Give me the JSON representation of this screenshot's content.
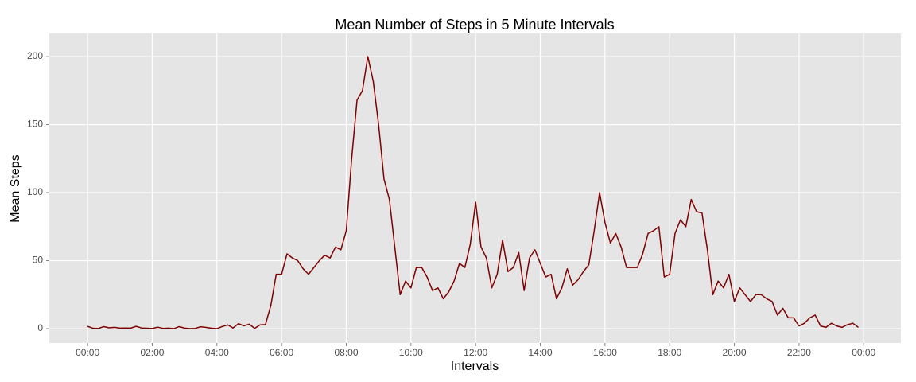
{
  "chart_data": {
    "type": "line",
    "title": "Mean Number of Steps in 5 Minute Intervals",
    "x_label": "Intervals",
    "y_label": "Mean Steps",
    "x": [
      0,
      10,
      20,
      30,
      40,
      50,
      60,
      70,
      80,
      90,
      100,
      110,
      120,
      130,
      140,
      150,
      160,
      170,
      180,
      190,
      200,
      210,
      220,
      230,
      240,
      250,
      260,
      270,
      280,
      290,
      300,
      310,
      320,
      330,
      340,
      350,
      360,
      370,
      380,
      390,
      400,
      410,
      420,
      430,
      440,
      450,
      460,
      470,
      480,
      490,
      500,
      510,
      520,
      530,
      540,
      550,
      560,
      570,
      580,
      590,
      600,
      610,
      620,
      630,
      640,
      650,
      660,
      670,
      680,
      690,
      700,
      710,
      720,
      730,
      740,
      750,
      760,
      770,
      780,
      790,
      800,
      810,
      820,
      830,
      840,
      850,
      860,
      870,
      880,
      890,
      900,
      910,
      920,
      930,
      940,
      950,
      960,
      970,
      980,
      990,
      1000,
      1010,
      1020,
      1030,
      1040,
      1050,
      1060,
      1070,
      1080,
      1090,
      1100,
      1110,
      1120,
      1130,
      1140,
      1150,
      1160,
      1170,
      1180,
      1190,
      1200,
      1210,
      1220,
      1230,
      1240,
      1250,
      1260,
      1270,
      1280,
      1290,
      1300,
      1310,
      1320,
      1330,
      1340,
      1350,
      1360,
      1370,
      1380,
      1390,
      1400,
      1410,
      1420,
      1430
    ],
    "series": [
      {
        "name": "Mean Steps",
        "color": "#7f0000",
        "values": [
          1.7,
          0.3,
          0.1,
          1.5,
          0.6,
          1,
          0.4,
          0.5,
          0.4,
          1.7,
          0.5,
          0.3,
          0.1,
          1.1,
          0.2,
          0.4,
          0,
          1.5,
          0.4,
          0,
          0.2,
          1.4,
          0.9,
          0.3,
          0,
          1.6,
          2.8,
          0.5,
          3.7,
          2.1,
          3.3,
          0.2,
          2.8,
          3,
          17,
          40,
          40,
          55,
          52,
          50,
          44,
          40,
          45,
          50,
          54,
          52,
          60,
          58,
          72,
          125,
          168,
          175,
          200,
          182,
          150,
          110,
          95,
          60,
          25,
          35,
          30,
          45,
          45,
          38,
          28,
          30,
          22,
          27,
          35,
          48,
          45,
          62,
          93,
          60,
          52,
          30,
          40,
          65,
          42,
          45,
          56,
          28,
          52,
          58,
          48,
          38,
          40,
          22,
          30,
          44,
          32,
          36,
          42,
          47,
          72,
          100,
          78,
          63,
          70,
          60,
          45,
          45,
          45,
          55,
          70,
          72,
          75,
          38,
          40,
          70,
          80,
          75,
          95,
          86,
          85,
          58,
          25,
          35,
          30,
          40,
          20,
          30,
          25,
          20,
          25,
          25,
          22,
          20,
          10,
          15,
          8,
          8,
          2,
          4,
          8,
          10,
          2,
          1,
          4,
          2,
          1,
          3,
          4,
          1
        ]
      }
    ],
    "xlim": [
      -71,
      1509
    ],
    "xticks": [
      {
        "value": 0,
        "label": "00:00"
      },
      {
        "value": 120,
        "label": "02:00"
      },
      {
        "value": 240,
        "label": "04:00"
      },
      {
        "value": 360,
        "label": "06:00"
      },
      {
        "value": 480,
        "label": "08:00"
      },
      {
        "value": 600,
        "label": "10:00"
      },
      {
        "value": 720,
        "label": "12:00"
      },
      {
        "value": 840,
        "label": "14:00"
      },
      {
        "value": 960,
        "label": "16:00"
      },
      {
        "value": 1080,
        "label": "18:00"
      },
      {
        "value": 1200,
        "label": "20:00"
      },
      {
        "value": 1320,
        "label": "22:00"
      },
      {
        "value": 1440,
        "label": "00:00"
      }
    ],
    "ylim": [
      -10.5,
      217
    ],
    "yticks": [
      0,
      50,
      100,
      150,
      200
    ],
    "grid": true
  }
}
